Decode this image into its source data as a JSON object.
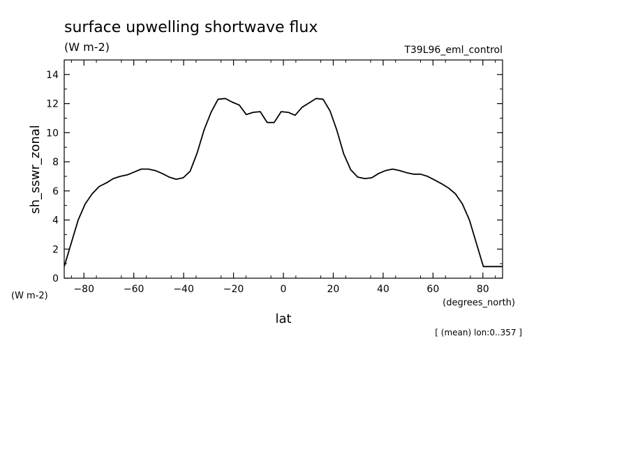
{
  "chart_data": {
    "type": "line",
    "title": "surface upwelling shortwave flux",
    "units": "(W m-2)",
    "run_label": "T39L96_eml_control",
    "ylabel": "sh_sswr_zonal",
    "y_units": "(W m-2)",
    "xlabel": "lat",
    "x_units": "(degrees_north)",
    "note": "[ (mean) lon:0..357 ]",
    "xlim": [
      -87.9,
      87.9
    ],
    "ylim": [
      0,
      15
    ],
    "x_ticks": [
      "-80",
      "-60",
      "-40",
      "-20",
      "0",
      "20",
      "40",
      "60",
      "80"
    ],
    "y_ticks": [
      "0",
      "2",
      "4",
      "6",
      "8",
      "10",
      "12",
      "14"
    ],
    "grid": false,
    "series": [
      {
        "x": [
          -87.9,
          -85.1,
          -82.3,
          -79.5,
          -76.7,
          -73.9,
          -71.0,
          -68.2,
          -65.4,
          -62.6,
          -59.8,
          -57.0,
          -54.2,
          -51.4,
          -48.6,
          -45.8,
          -43.0,
          -40.2,
          -37.4,
          -34.6,
          -31.8,
          -29.0,
          -26.2,
          -23.3,
          -20.5,
          -17.7,
          -14.9,
          -12.1,
          -9.3,
          -6.5,
          -3.7,
          -0.9,
          1.9,
          4.7,
          7.5,
          10.3,
          13.1,
          15.9,
          18.7,
          21.4,
          24.2,
          27.0,
          29.8,
          32.6,
          35.4,
          38.2,
          41.0,
          43.8,
          46.6,
          49.4,
          52.2,
          55.0,
          57.8,
          60.6,
          63.4,
          66.2,
          69.0,
          71.8,
          74.6,
          77.4,
          80.2,
          83.0,
          85.8,
          87.9
        ],
        "y": [
          0.8,
          2.4,
          4.0,
          5.1,
          5.8,
          6.3,
          6.55,
          6.85,
          7.0,
          7.1,
          7.3,
          7.5,
          7.5,
          7.4,
          7.2,
          6.95,
          6.8,
          6.9,
          7.35,
          8.6,
          10.2,
          11.4,
          12.3,
          12.35,
          12.1,
          11.9,
          11.25,
          11.4,
          11.45,
          10.7,
          10.7,
          11.45,
          11.4,
          11.2,
          11.75,
          12.05,
          12.35,
          12.3,
          11.5,
          10.2,
          8.55,
          7.45,
          6.95,
          6.85,
          6.9,
          7.2,
          7.4,
          7.5,
          7.4,
          7.25,
          7.15,
          7.15,
          7.0,
          6.75,
          6.5,
          6.2,
          5.8,
          5.1,
          4.0,
          2.4,
          0.8,
          0.8,
          0.8,
          0.8
        ]
      }
    ]
  }
}
